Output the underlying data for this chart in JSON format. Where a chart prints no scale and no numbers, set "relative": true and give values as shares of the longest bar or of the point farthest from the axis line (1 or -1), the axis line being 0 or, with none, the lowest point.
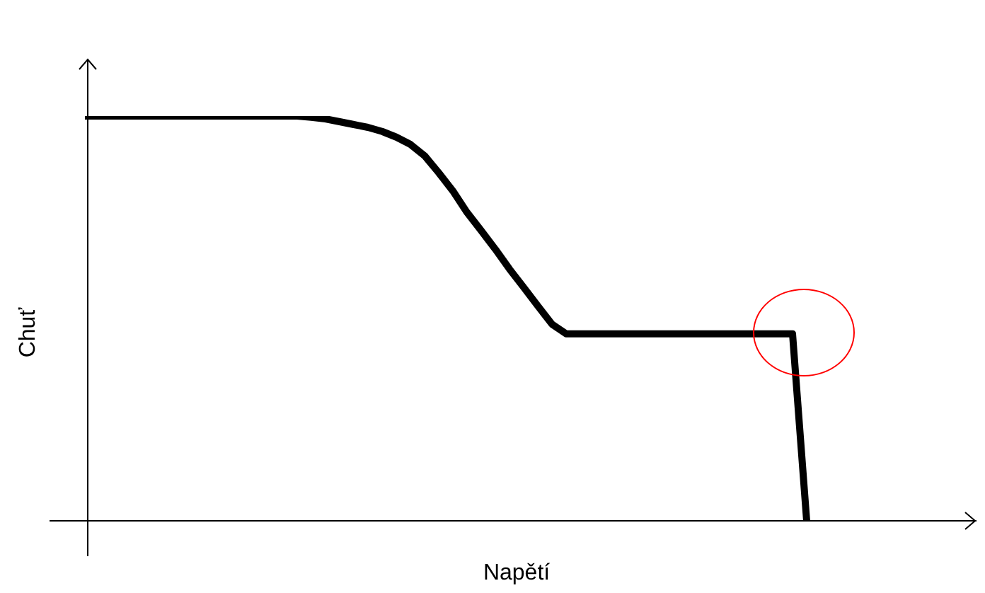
{
  "chart_data": {
    "type": "line",
    "xlabel": "Napětí",
    "ylabel": "Chuť",
    "relative": true,
    "marker": "none",
    "categories": [
      null,
      null,
      null,
      null,
      null,
      null,
      null,
      null,
      null,
      null,
      null,
      null,
      null,
      null,
      null,
      null,
      null,
      null,
      null,
      null,
      null,
      null,
      null,
      null,
      null,
      null,
      null,
      null,
      null,
      null,
      null,
      null,
      null,
      null,
      null,
      null,
      null,
      null,
      null,
      null,
      null,
      null,
      null,
      null,
      null,
      null,
      null,
      null,
      null,
      null,
      null,
      null,
      null,
      null,
      null,
      null,
      null,
      null,
      null,
      null,
      null,
      null,
      null
    ],
    "series": [
      {
        "color": "#000000",
        "values": [
          1,
          1,
          1,
          1,
          1,
          1,
          1,
          1,
          1,
          1,
          1,
          1,
          1,
          1,
          1,
          1,
          0.997,
          0.993,
          0.986,
          0.979,
          0.972,
          0.962,
          0.948,
          0.93,
          0.902,
          0.86,
          0.815,
          0.762,
          0.717,
          0.671,
          0.622,
          0.577,
          0.531,
          0.486,
          0.462,
          0.462,
          0.462,
          0.462,
          0.462,
          0.462,
          0.462,
          0.462,
          0.462,
          0.462,
          0.462,
          0.462,
          0.462,
          0.462,
          0.462,
          0.462,
          0.462,
          0,
          null,
          null,
          null,
          null,
          null,
          null,
          null,
          null,
          null,
          null,
          null
        ]
      }
    ]
  }
}
